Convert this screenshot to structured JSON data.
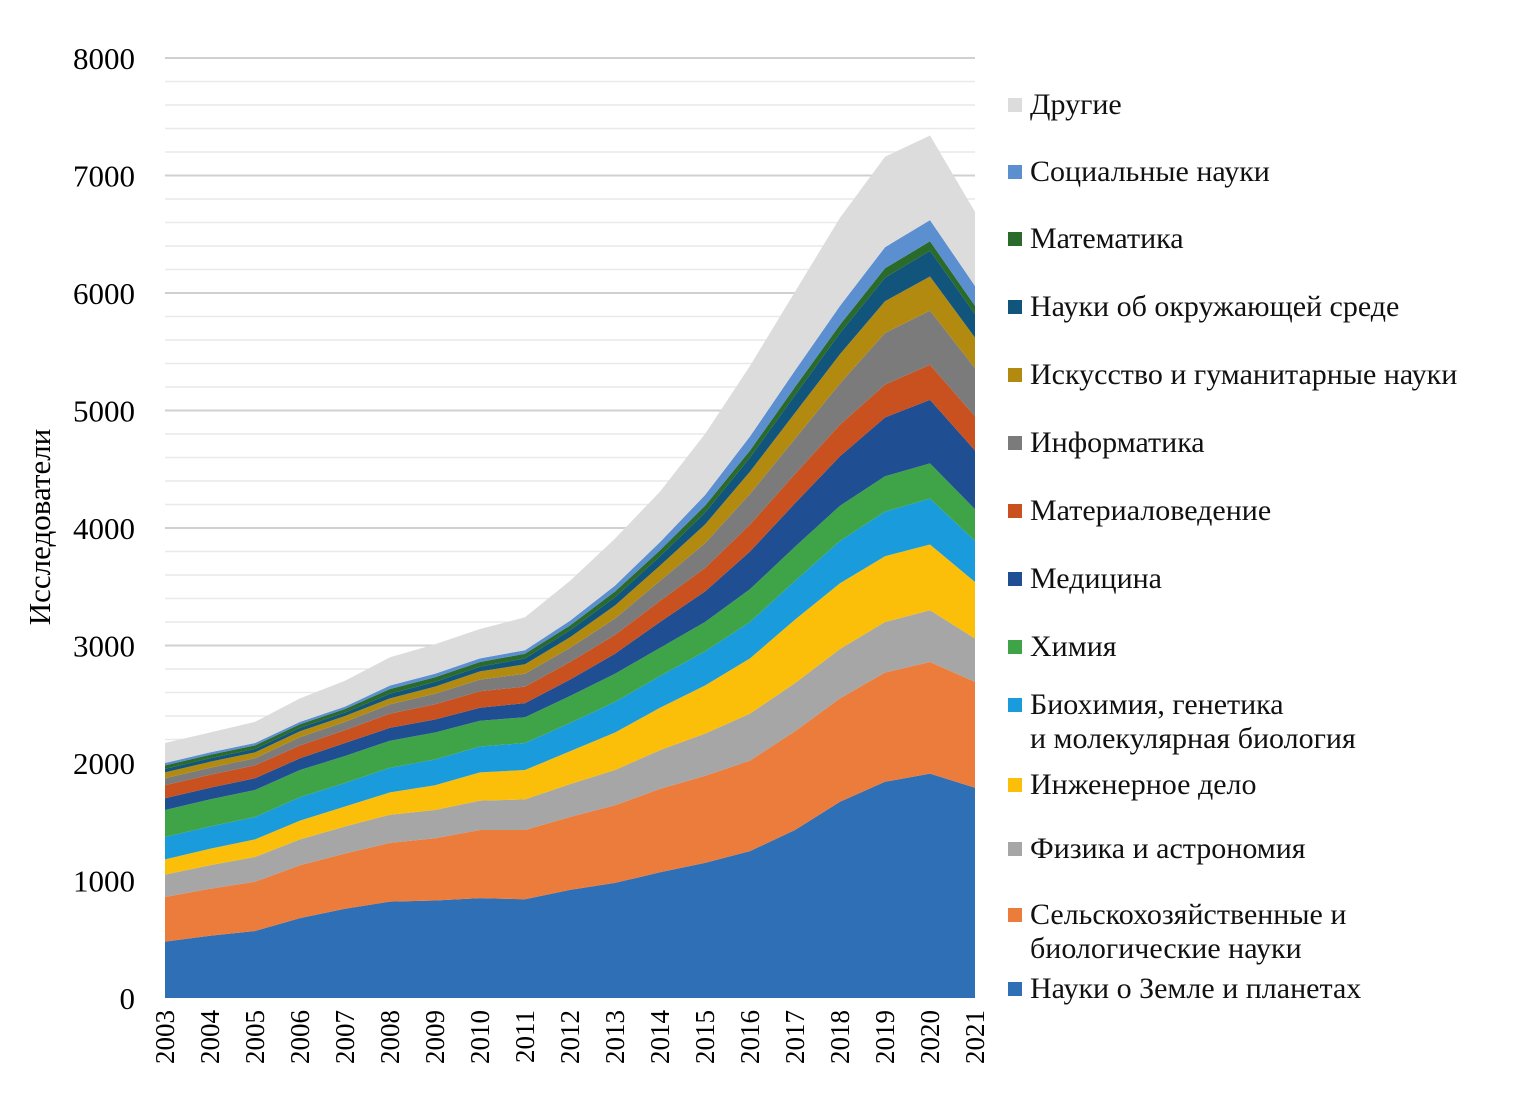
{
  "chart_data": {
    "type": "area",
    "stacked": true,
    "title": "",
    "xlabel": "",
    "ylabel": "Исследователи",
    "ylim": [
      0,
      8000
    ],
    "yticks": [
      "0",
      "1000",
      "2000",
      "3000",
      "4000",
      "5000",
      "6000",
      "7000",
      "8000"
    ],
    "grid": true,
    "legend_position": "right",
    "x": [
      "2003",
      "2004",
      "2005",
      "2006",
      "2007",
      "2008",
      "2009",
      "2010",
      "2011",
      "2012",
      "2013",
      "2014",
      "2015",
      "2016",
      "2017",
      "2018",
      "2019",
      "2020",
      "2021"
    ],
    "series": [
      {
        "name": "Науки о Земле и планетах",
        "color": "#2f6fb6",
        "values": [
          480,
          530,
          570,
          680,
          760,
          820,
          830,
          850,
          840,
          920,
          980,
          1070,
          1150,
          1250,
          1430,
          1670,
          1840,
          1910,
          1790
        ]
      },
      {
        "name": "Сельскохозяйственные и биологические науки",
        "color": "#ec7c3b",
        "values": [
          380,
          400,
          420,
          450,
          470,
          500,
          530,
          580,
          590,
          620,
          660,
          710,
          740,
          770,
          840,
          880,
          930,
          950,
          900
        ]
      },
      {
        "name": "Физика и астрономия",
        "color": "#a6a6a6",
        "values": [
          190,
          200,
          210,
          220,
          230,
          240,
          240,
          250,
          260,
          280,
          300,
          330,
          360,
          400,
          410,
          420,
          430,
          440,
          370
        ]
      },
      {
        "name": "Инженерное дело",
        "color": "#fbbf0a",
        "values": [
          130,
          140,
          150,
          160,
          170,
          190,
          210,
          240,
          250,
          280,
          320,
          360,
          410,
          470,
          540,
          560,
          560,
          560,
          480
        ]
      },
      {
        "name": "Биохимия, генетика и молекулярная биология",
        "color": "#1a9bdc",
        "values": [
          190,
          190,
          190,
          200,
          200,
          210,
          220,
          220,
          230,
          240,
          260,
          270,
          290,
          310,
          330,
          360,
          380,
          390,
          350
        ]
      },
      {
        "name": "Химия",
        "color": "#3fa448",
        "values": [
          230,
          230,
          230,
          230,
          230,
          230,
          230,
          220,
          220,
          230,
          240,
          240,
          250,
          280,
          290,
          300,
          300,
          300,
          270
        ]
      },
      {
        "name": "Медицина",
        "color": "#1f4e92",
        "values": [
          100,
          100,
          100,
          100,
          110,
          110,
          110,
          110,
          120,
          140,
          170,
          220,
          260,
          320,
          370,
          420,
          500,
          540,
          500
        ]
      },
      {
        "name": "Материаловедение",
        "color": "#c9501f",
        "values": [
          110,
          110,
          110,
          110,
          110,
          120,
          130,
          140,
          140,
          150,
          160,
          180,
          200,
          230,
          250,
          270,
          280,
          300,
          290
        ]
      },
      {
        "name": "Информатика",
        "color": "#7b7b7b",
        "values": [
          60,
          60,
          60,
          70,
          70,
          80,
          90,
          100,
          110,
          120,
          140,
          170,
          210,
          260,
          300,
          350,
          440,
          460,
          410
        ]
      },
      {
        "name": "Искусство и гуманитарные науки",
        "color": "#b38a10",
        "values": [
          50,
          50,
          50,
          50,
          50,
          50,
          60,
          70,
          80,
          90,
          110,
          130,
          160,
          190,
          220,
          250,
          270,
          290,
          260
        ]
      },
      {
        "name": "Науки об окружающей среде",
        "color": "#11557c",
        "values": [
          30,
          30,
          30,
          30,
          30,
          40,
          40,
          40,
          50,
          60,
          70,
          80,
          100,
          120,
          150,
          180,
          200,
          220,
          200
        ]
      },
      {
        "name": "Математика",
        "color": "#2a6a2a",
        "values": [
          30,
          30,
          30,
          30,
          30,
          40,
          40,
          40,
          40,
          40,
          50,
          50,
          60,
          60,
          70,
          70,
          80,
          80,
          70
        ]
      },
      {
        "name": "Социальные науки",
        "color": "#5b8fd0",
        "values": [
          20,
          20,
          20,
          20,
          20,
          30,
          30,
          30,
          30,
          40,
          50,
          70,
          90,
          120,
          140,
          160,
          180,
          180,
          170
        ]
      },
      {
        "name": "Другие",
        "color": "#dcdcdc",
        "values": [
          170,
          170,
          180,
          200,
          220,
          240,
          250,
          250,
          280,
          340,
          400,
          430,
          520,
          600,
          670,
          750,
          770,
          720,
          630
        ]
      }
    ]
  },
  "legend": {
    "items": [
      {
        "color": "#dcdcdc",
        "lines": [
          "Другие"
        ]
      },
      {
        "color": "#5b8fd0",
        "lines": [
          "Социальные науки"
        ]
      },
      {
        "color": "#2a6a2a",
        "lines": [
          "Математика"
        ]
      },
      {
        "color": "#11557c",
        "lines": [
          "Науки об окружающей среде"
        ]
      },
      {
        "color": "#b38a10",
        "lines": [
          "Искусство и гуманитарные науки"
        ]
      },
      {
        "color": "#7b7b7b",
        "lines": [
          "Информатика"
        ]
      },
      {
        "color": "#c9501f",
        "lines": [
          "Материаловедение"
        ]
      },
      {
        "color": "#1f4e92",
        "lines": [
          "Медицина"
        ]
      },
      {
        "color": "#3fa448",
        "lines": [
          "Химия"
        ]
      },
      {
        "color": "#1a9bdc",
        "lines": [
          "Биохимия, генетика",
          "и молекулярная биология"
        ]
      },
      {
        "color": "#fbbf0a",
        "lines": [
          "Инженерное дело"
        ]
      },
      {
        "color": "#a6a6a6",
        "lines": [
          "Физика и астрономия"
        ]
      },
      {
        "color": "#ec7c3b",
        "lines": [
          "Сельскохозяйственные и",
          "биологические науки"
        ]
      },
      {
        "color": "#2f6fb6",
        "lines": [
          "Науки о Земле и планетах"
        ]
      }
    ]
  }
}
